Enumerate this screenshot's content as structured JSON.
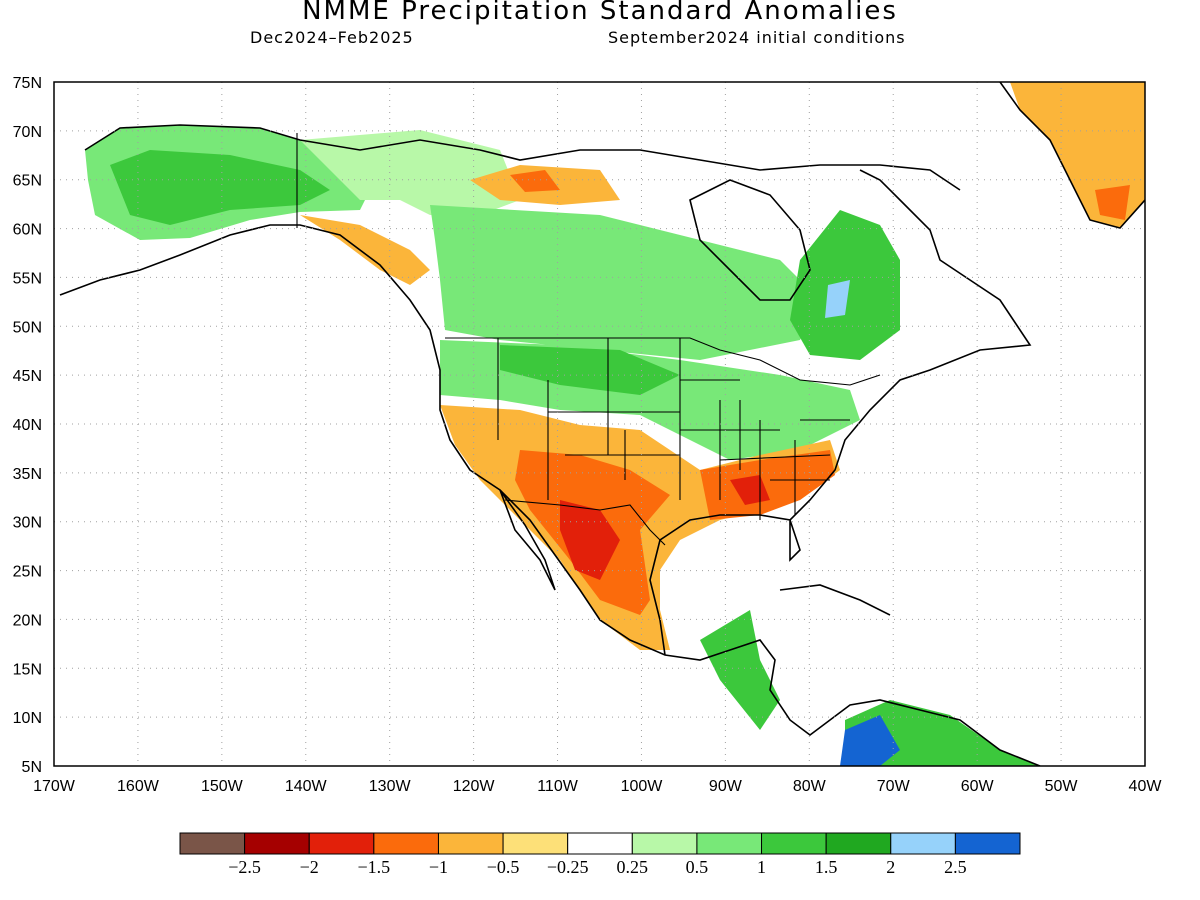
{
  "header": {
    "title": "NMME Precipitation Standard Anomalies",
    "period": "Dec2024–Feb2025",
    "conditions": "September2024 initial conditions"
  },
  "map": {
    "lat_range": [
      5,
      75
    ],
    "lon_range": [
      -170,
      -40
    ],
    "lat_ticks": [
      "5N",
      "10N",
      "15N",
      "20N",
      "25N",
      "30N",
      "35N",
      "40N",
      "45N",
      "50N",
      "55N",
      "60N",
      "65N",
      "70N",
      "75N"
    ],
    "lon_ticks": [
      "170W",
      "160W",
      "150W",
      "140W",
      "130W",
      "120W",
      "110W",
      "100W",
      "90W",
      "80W",
      "70W",
      "60W",
      "50W",
      "40W"
    ],
    "grid": "dotted"
  },
  "legend": {
    "colors": [
      "#7a5548",
      "#a50000",
      "#e2200a",
      "#fb6b0c",
      "#fbb53a",
      "#fde078",
      "#ffffff",
      "#b8f8a8",
      "#78e878",
      "#3cc83c",
      "#20a820",
      "#96d2fa",
      "#1464d2"
    ],
    "labels": [
      "−2.5",
      "−2",
      "−1.5",
      "−1",
      "−0.5",
      "−0.25",
      "0.25",
      "0.5",
      "1",
      "1.5",
      "2",
      "2.5"
    ]
  },
  "colors": {
    "land_outline": "#000000",
    "gridline": "#a0a0a0"
  }
}
